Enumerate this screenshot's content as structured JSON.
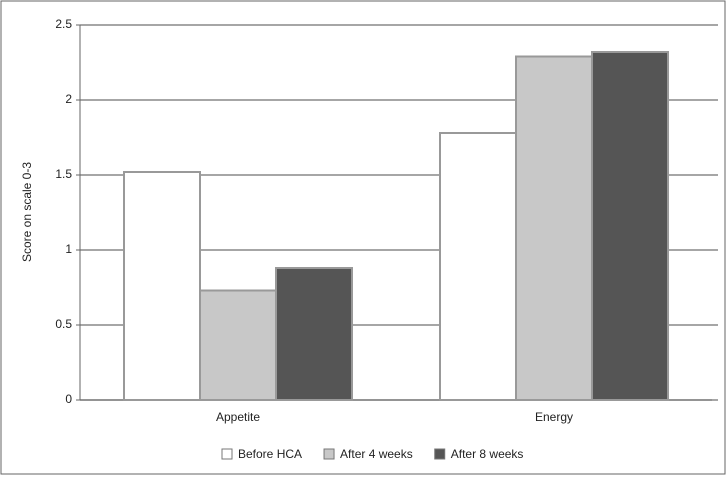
{
  "chart_data": {
    "type": "bar",
    "y_label": "Score on scale 0-3",
    "categories": [
      "Appetite",
      "Energy"
    ],
    "series": [
      {
        "name": "Before HCA",
        "color": "#ffffff",
        "values": [
          1.52,
          1.78
        ]
      },
      {
        "name": "After 4 weeks",
        "color": "#c8c8c8",
        "values": [
          0.73,
          2.29
        ]
      },
      {
        "name": "After 8 weeks",
        "color": "#555555",
        "values": [
          0.88,
          2.32
        ]
      }
    ],
    "ylim": [
      0,
      2.5
    ],
    "yticks": [
      0,
      0.5,
      1,
      1.5,
      2,
      2.5
    ],
    "grid": true
  }
}
